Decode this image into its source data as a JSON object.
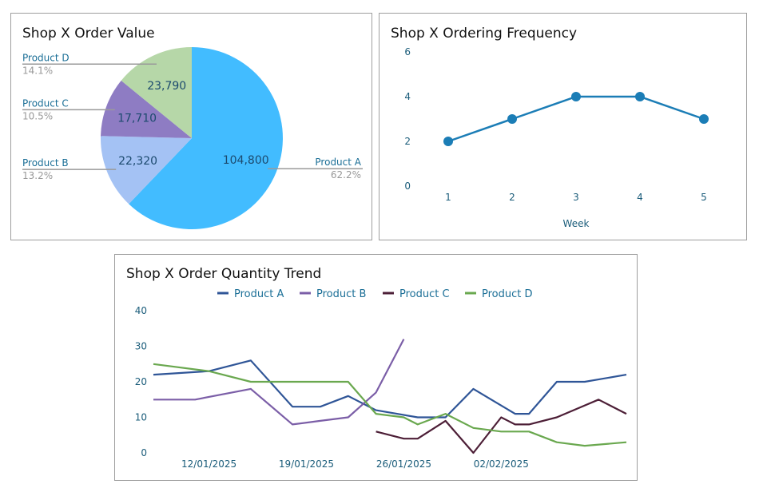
{
  "colors": {
    "pie": [
      "#42BCFF",
      "#A4C2F4",
      "#8E7CC3",
      "#B6D7A8"
    ],
    "line_freq": "#1B7DB6",
    "trend": [
      "#2F5597",
      "#7B5EA7",
      "#4D1F37",
      "#6AA84F"
    ]
  },
  "chart_data": [
    {
      "type": "pie",
      "title": "Shop X Order Value",
      "slices": [
        {
          "label": "Product A",
          "value": 104800,
          "value_label": "104,800",
          "percent_label": "62.2%"
        },
        {
          "label": "Product B",
          "value": 22320,
          "value_label": "22,320",
          "percent_label": "13.2%"
        },
        {
          "label": "Product C",
          "value": 17710,
          "value_label": "17,710",
          "percent_label": "10.5%"
        },
        {
          "label": "Product D",
          "value": 23790,
          "value_label": "23,790",
          "percent_label": "14.1%"
        }
      ]
    },
    {
      "type": "line",
      "title": "Shop X Ordering Frequency",
      "xlabel": "Week",
      "ylabel": "",
      "x": [
        1,
        2,
        3,
        4,
        5
      ],
      "values": [
        2,
        3,
        4,
        4,
        3
      ],
      "ylim": [
        0,
        6
      ],
      "yticks": [
        0,
        2,
        4,
        6
      ],
      "grid": false,
      "markers": true
    },
    {
      "type": "line",
      "title": "Shop X Order Quantity Trend",
      "x_range": [
        "08/01/2025",
        "06/02/2025"
      ],
      "xticks": [
        "12/01/2025",
        "19/01/2025",
        "26/01/2025",
        "02/02/2025"
      ],
      "xtick_days": [
        4,
        11,
        18,
        25
      ],
      "ylim": [
        0,
        40
      ],
      "yticks": [
        0,
        10,
        20,
        30,
        40
      ],
      "legend": "top",
      "series": [
        {
          "name": "Product A",
          "x": [
            0,
            4,
            7,
            10,
            12,
            14,
            16,
            19,
            21,
            23,
            26,
            27,
            29,
            31,
            34
          ],
          "values": [
            22,
            23,
            26,
            13,
            13,
            16,
            12,
            10,
            10,
            18,
            11,
            11,
            20,
            20,
            22
          ]
        },
        {
          "name": "Product B",
          "x": [
            0,
            3,
            7,
            10,
            12,
            14,
            16,
            18
          ],
          "values": [
            15,
            15,
            18,
            8,
            9,
            10,
            17,
            32
          ]
        },
        {
          "name": "Product C",
          "x": [
            16,
            18,
            19,
            21,
            23,
            25,
            26,
            27,
            29,
            32,
            34
          ],
          "values": [
            6,
            4,
            4,
            9,
            0,
            10,
            8,
            8,
            10,
            15,
            11
          ]
        },
        {
          "name": "Product D",
          "x": [
            0,
            4,
            7,
            10,
            12,
            14,
            16,
            18,
            19,
            21,
            23,
            25,
            26,
            27,
            29,
            31,
            34
          ],
          "values": [
            25,
            23,
            20,
            20,
            20,
            20,
            11,
            10,
            8,
            11,
            7,
            6,
            6,
            6,
            3,
            2,
            3
          ]
        }
      ]
    }
  ]
}
